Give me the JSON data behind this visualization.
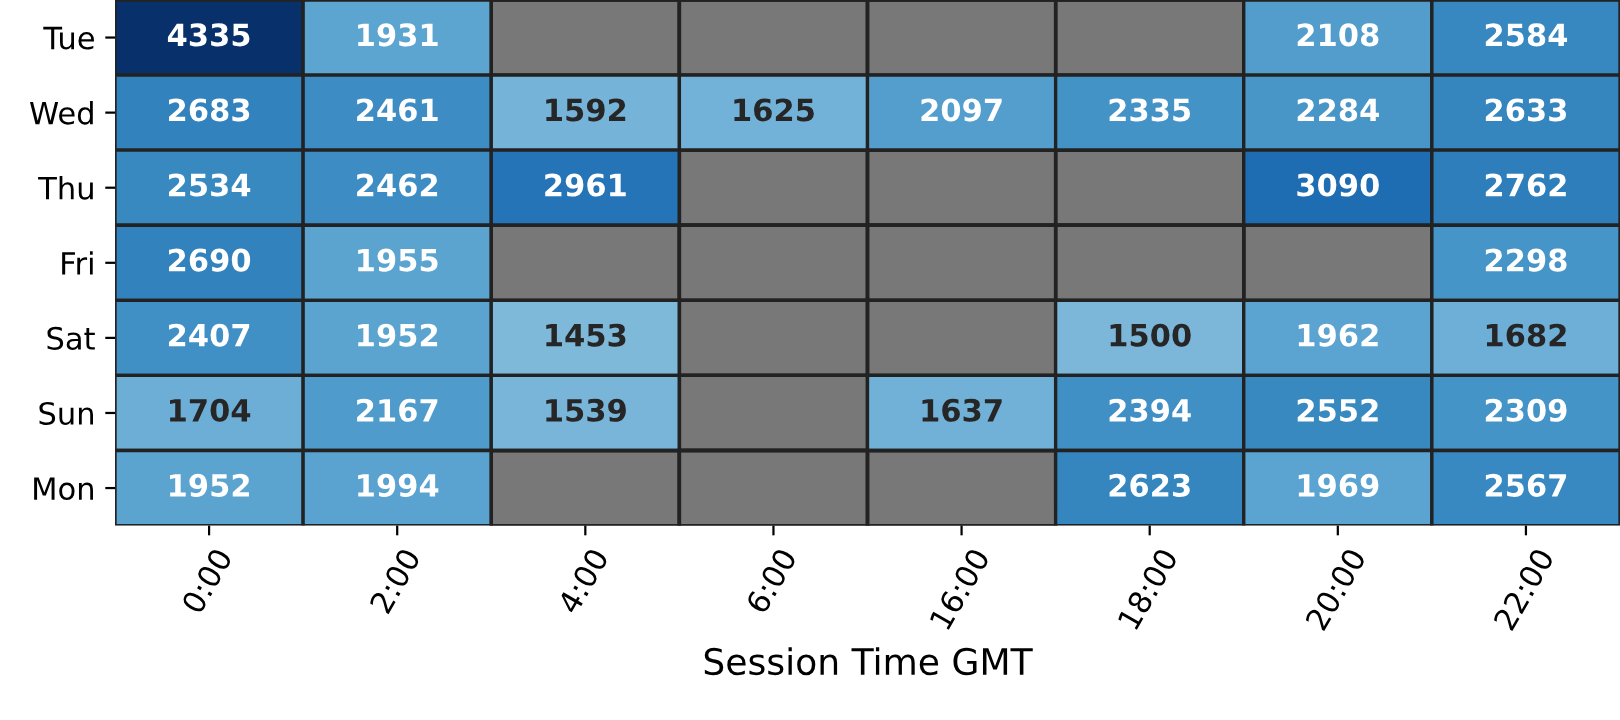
{
  "chart_data": {
    "type": "heatmap",
    "xlabel": "Session Time GMT",
    "categories": [
      "0:00",
      "2:00",
      "4:00",
      "6:00",
      "16:00",
      "18:00",
      "20:00",
      "22:00"
    ],
    "y_categories": [
      "Tue",
      "Wed",
      "Thu",
      "Fri",
      "Sat",
      "Sun",
      "Mon"
    ],
    "cells": [
      [
        4335,
        1931,
        null,
        null,
        null,
        null,
        2108,
        2584
      ],
      [
        2683,
        2461,
        1592,
        1625,
        2097,
        2335,
        2284,
        2633
      ],
      [
        2534,
        2462,
        2961,
        null,
        null,
        null,
        3090,
        2762
      ],
      [
        2690,
        1955,
        null,
        null,
        null,
        null,
        null,
        2298
      ],
      [
        2407,
        1952,
        1453,
        null,
        null,
        1500,
        1962,
        1682
      ],
      [
        1704,
        2167,
        1539,
        null,
        1637,
        2394,
        2552,
        2309
      ],
      [
        1952,
        1994,
        null,
        null,
        null,
        2623,
        1969,
        2567
      ]
    ],
    "data_labels": true
  }
}
